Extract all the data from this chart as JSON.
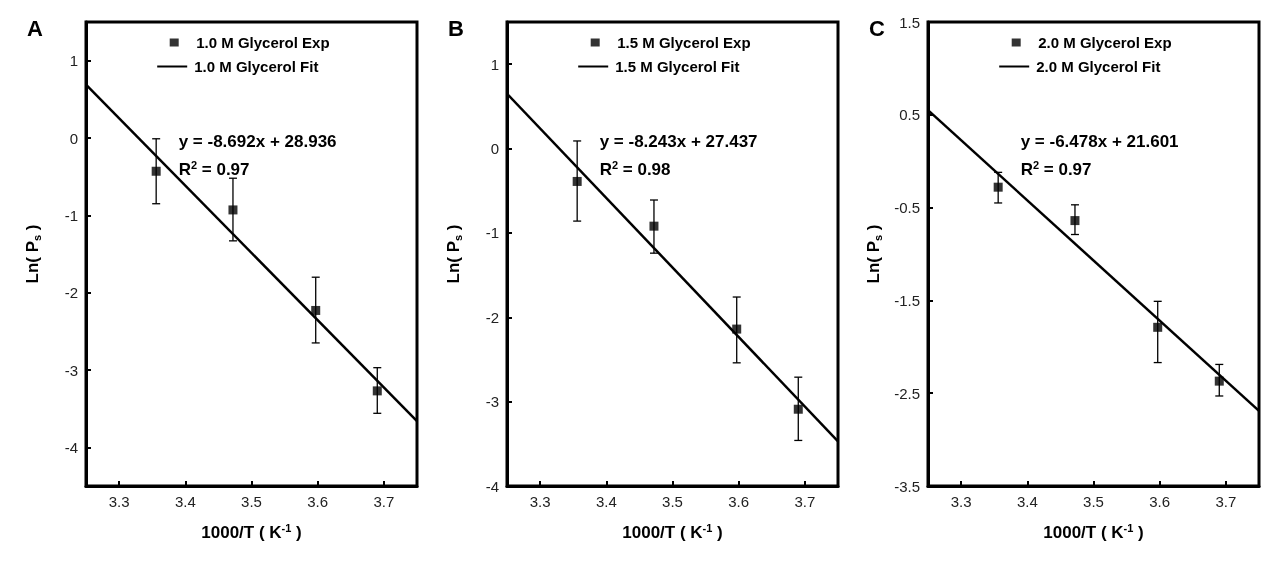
{
  "chart_data": [
    {
      "type": "scatter",
      "title": "A",
      "xlabel": "1000/T ( K$^{-1}$ )",
      "ylabel": "Ln( P$_{s}$ )",
      "xlim": [
        3.25,
        3.75
      ],
      "xticks": [
        3.3,
        3.4,
        3.5,
        3.6,
        3.7
      ],
      "ylim": [
        -4.5,
        1.5
      ],
      "yticks": [
        -4,
        -3,
        -2,
        -1,
        0,
        1
      ],
      "grid": false,
      "legend": "top right",
      "marker": "square",
      "annotations": [
        "y = -8.692x + 28.936",
        "R$^{2}$ = 0.97"
      ],
      "series": [
        {
          "name": "1.0 M Glycerol Exp",
          "color": "#000000",
          "x": [
            3.356,
            3.472,
            3.597,
            3.69
          ],
          "values": [
            -0.43,
            -0.93,
            -2.23,
            -3.27
          ],
          "errors": [
            [
              -0.85,
              -0.01
            ],
            [
              -1.33,
              -0.52
            ],
            [
              -2.65,
              -1.8
            ],
            [
              -3.56,
              -2.97
            ]
          ]
        },
        {
          "name": "1.0 M Glycerol Fit",
          "type": "line",
          "color": "#000000",
          "marker": "none",
          "x": [
            3.25,
            3.75
          ],
          "values": [
            0.69,
            -3.66
          ]
        }
      ]
    },
    {
      "type": "scatter",
      "title": "B",
      "xlabel": "1000/T ( K$^{-1}$ )",
      "ylabel": "Ln( P$_{s}$ )",
      "xlim": [
        3.25,
        3.75
      ],
      "xticks": [
        3.3,
        3.4,
        3.5,
        3.6,
        3.7
      ],
      "ylim": [
        -4,
        1.5
      ],
      "yticks": [
        -4,
        -3,
        -2,
        -1,
        0,
        1
      ],
      "grid": false,
      "legend": "top right",
      "marker": "square",
      "annotations": [
        "y = -8.243x + 27.437",
        "R$^{2}$ = 0.98"
      ],
      "series": [
        {
          "name": "1.5 M Glycerol Exp",
          "color": "#000000",
          "x": [
            3.356,
            3.472,
            3.597,
            3.69
          ],
          "values": [
            -0.39,
            -0.92,
            -2.14,
            -3.09
          ],
          "errors": [
            [
              -0.86,
              0.09
            ],
            [
              -1.24,
              -0.61
            ],
            [
              -2.54,
              -1.76
            ],
            [
              -3.46,
              -2.71
            ]
          ]
        },
        {
          "name": "1.5 M Glycerol Fit",
          "type": "line",
          "color": "#000000",
          "marker": "none",
          "x": [
            3.25,
            3.75
          ],
          "values": [
            0.65,
            -3.47
          ]
        }
      ]
    },
    {
      "type": "scatter",
      "title": "C",
      "xlabel": "1000/T ( K$^{-1}$ )",
      "ylabel": "Ln( P$_{s}$ )",
      "xlim": [
        3.25,
        3.75
      ],
      "xticks": [
        3.3,
        3.4,
        3.5,
        3.6,
        3.7
      ],
      "ylim": [
        -3.5,
        1.5
      ],
      "yticks": [
        -3.5,
        -2.5,
        -1.5,
        -0.5,
        0.5,
        1.5
      ],
      "grid": false,
      "legend": "top right",
      "marker": "square",
      "annotations": [
        "y = -6.478x + 21.601",
        "R$^{2}$ = 0.97"
      ],
      "series": [
        {
          "name": "2.0 M Glycerol Exp",
          "color": "#000000",
          "x": [
            3.356,
            3.472,
            3.597,
            3.69
          ],
          "values": [
            -0.28,
            -0.64,
            -1.79,
            -2.37
          ],
          "errors": [
            [
              -0.45,
              -0.12
            ],
            [
              -0.79,
              -0.47
            ],
            [
              -2.17,
              -1.51
            ],
            [
              -2.53,
              -2.19
            ]
          ]
        },
        {
          "name": "2.0 M Glycerol Fit",
          "type": "line",
          "color": "#000000",
          "marker": "none",
          "x": [
            3.25,
            3.75
          ],
          "values": [
            0.55,
            -2.69
          ]
        }
      ]
    }
  ]
}
